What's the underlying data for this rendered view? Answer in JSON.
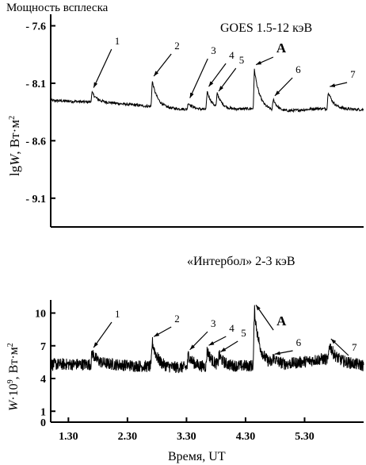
{
  "page_title": "Мощность всплеска",
  "chart_data": [
    {
      "type": "line",
      "title": "GOES 1.5-12 кэВ",
      "ylabel": "lgW, Вт·м⁻²",
      "ylabel_main": "lg",
      "ylabel_var": "W",
      "ylabel_unit": ", Вт·м",
      "ylabel_sup": "2",
      "ylim": [
        -9.35,
        -7.5
      ],
      "yticks": [
        -7.6,
        -8.1,
        -8.6,
        -9.1
      ],
      "ytick_labels": [
        "- 7.6",
        "- 8.1",
        "- 8.6",
        "- 9.1"
      ],
      "xlim": [
        1.0,
        6.3
      ],
      "baseline": [
        [
          1.0,
          -8.25
        ],
        [
          2.0,
          -8.27
        ],
        [
          2.65,
          -8.3
        ],
        [
          3.0,
          -8.32
        ],
        [
          3.5,
          -8.33
        ],
        [
          4.0,
          -8.33
        ],
        [
          4.45,
          -8.32
        ],
        [
          4.9,
          -8.35
        ],
        [
          5.5,
          -8.32
        ],
        [
          6.3,
          -8.33
        ]
      ],
      "peaks": [
        {
          "label": "1",
          "x": 1.7,
          "y": -8.18
        },
        {
          "label": "2",
          "x": 2.72,
          "y": -8.08
        },
        {
          "label": "3",
          "x": 3.33,
          "y": -8.27
        },
        {
          "label": "4",
          "x": 3.65,
          "y": -8.17
        },
        {
          "label": "5",
          "x": 3.82,
          "y": -8.21
        },
        {
          "label": "A",
          "x": 4.45,
          "y": -7.98
        },
        {
          "label": "6",
          "x": 4.77,
          "y": -8.25
        },
        {
          "label": "7",
          "x": 5.7,
          "y": -8.17
        }
      ]
    },
    {
      "type": "line",
      "title": "«Интербол» 2-3 кэВ",
      "ylabel": "W·10⁹, Вт·м⁻²",
      "ylabel_var": "W",
      "ylabel_main": "·10",
      "ylabel_sup1": "9",
      "ylabel_unit": ", Вт·м",
      "ylabel_sup2": "2",
      "xlabel": "Время, UT",
      "ylim": [
        0,
        11.2
      ],
      "yticks": [
        0,
        1,
        4,
        7,
        10
      ],
      "ytick_labels": [
        "0",
        "1",
        "4",
        "7",
        "10"
      ],
      "xlim": [
        1.0,
        6.3
      ],
      "xticks": [
        1.3,
        2.3,
        3.3,
        4.3,
        5.3
      ],
      "xtick_labels": [
        "1.30",
        "2.30",
        "3.30",
        "4.30",
        "5.30"
      ],
      "baseline": [
        [
          1.0,
          5.3
        ],
        [
          2.0,
          5.3
        ],
        [
          3.0,
          5.0
        ],
        [
          4.0,
          5.1
        ],
        [
          5.0,
          5.3
        ],
        [
          5.6,
          5.8
        ],
        [
          6.3,
          5.2
        ]
      ],
      "peaks": [
        {
          "label": "1",
          "x": 1.7,
          "y": 6.4
        },
        {
          "label": "2",
          "x": 2.72,
          "y": 7.4
        },
        {
          "label": "3",
          "x": 3.33,
          "y": 6.2
        },
        {
          "label": "4",
          "x": 3.65,
          "y": 6.6
        },
        {
          "label": "5",
          "x": 3.85,
          "y": 6.0
        },
        {
          "label": "A",
          "x": 4.45,
          "y": 10.3
        },
        {
          "label": "6",
          "x": 4.77,
          "y": 5.8
        },
        {
          "label": "7",
          "x": 5.72,
          "y": 7.2
        }
      ]
    }
  ]
}
